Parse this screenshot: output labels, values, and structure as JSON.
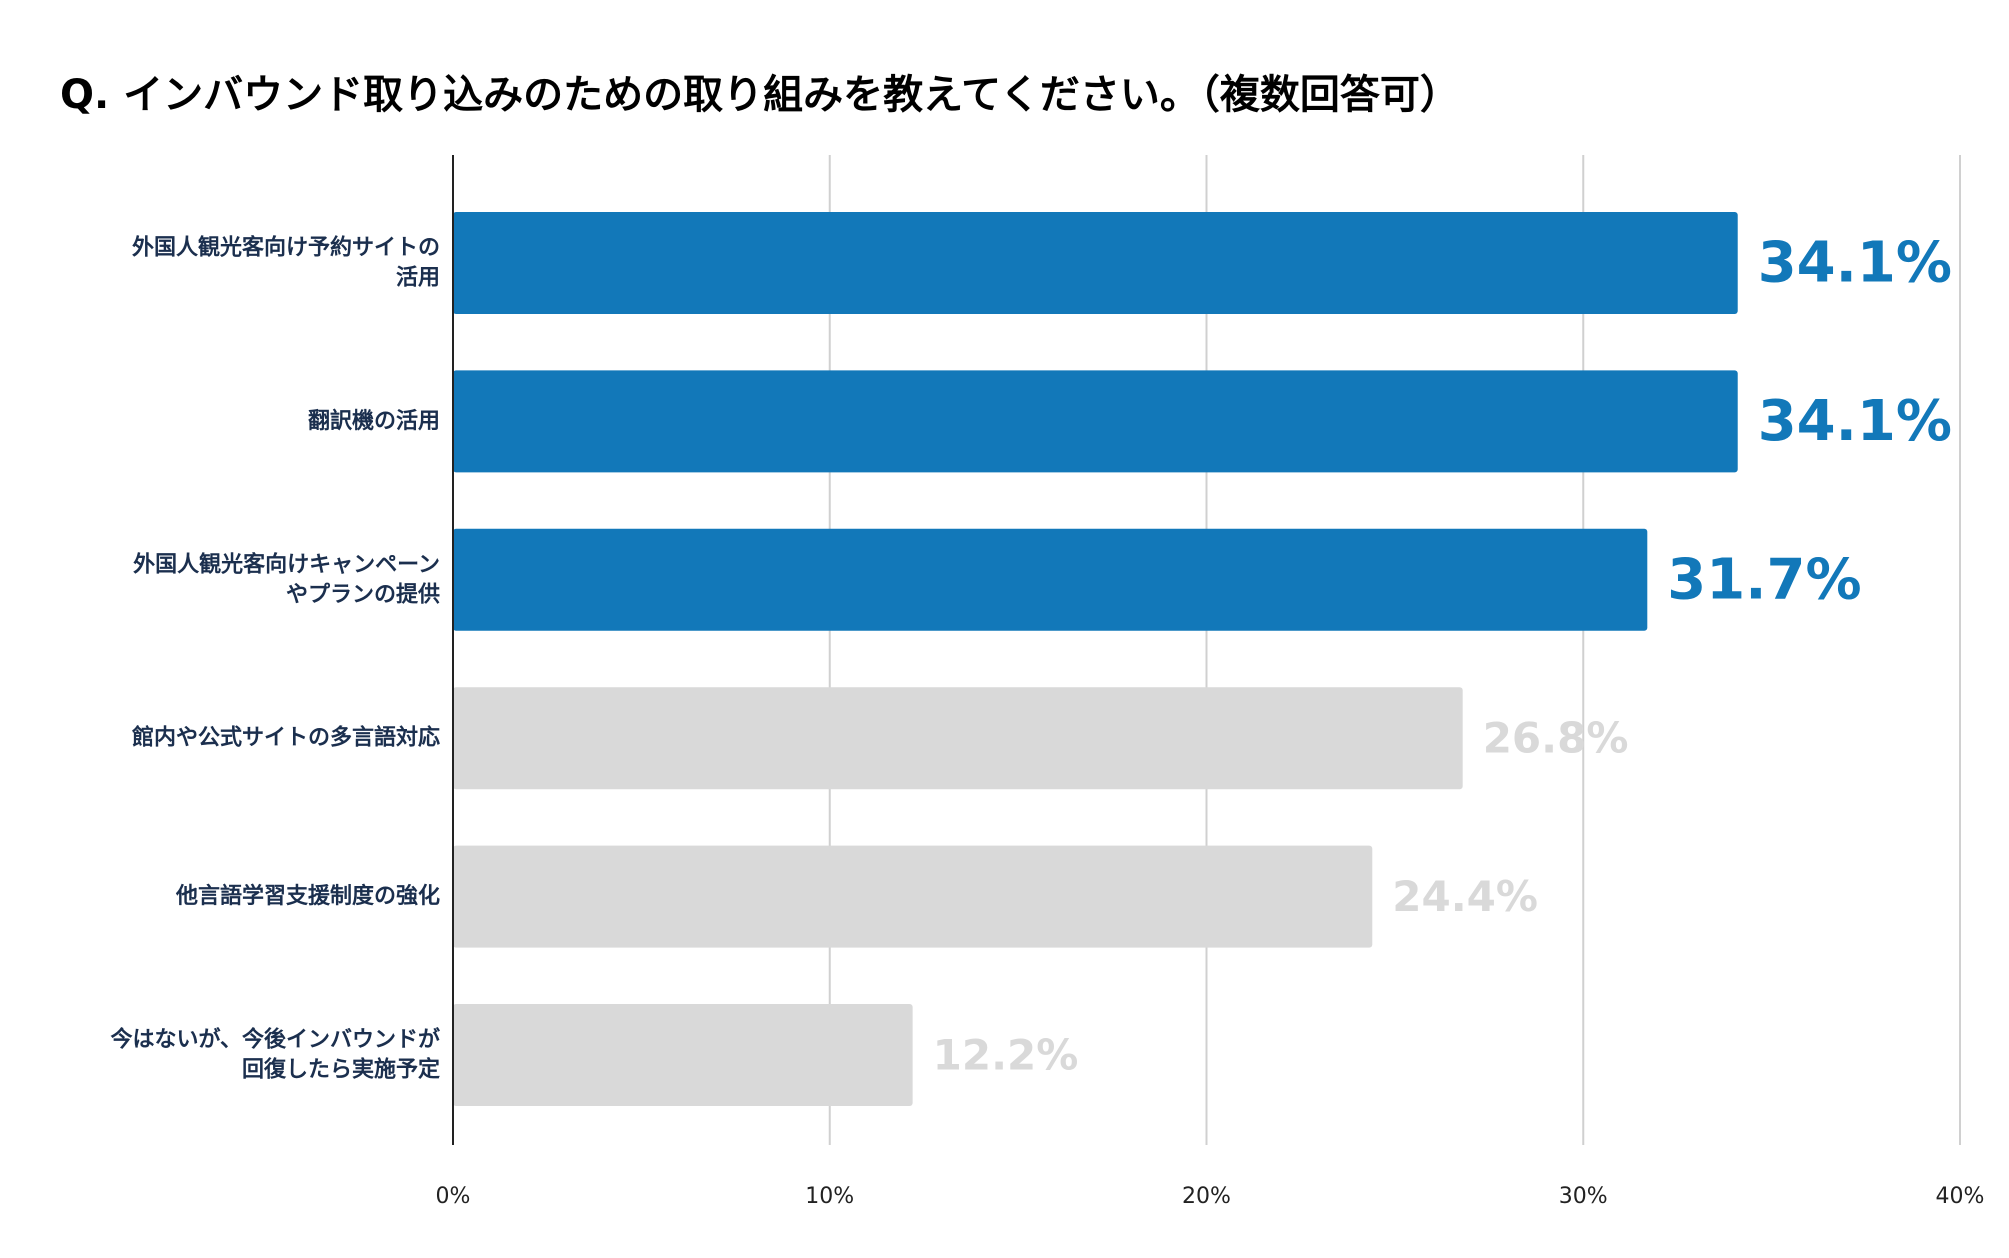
{
  "chart_data": {
    "type": "bar",
    "orientation": "horizontal",
    "title": "Q. インバウンド取り込みのための取り組みを教えてください。（複数回答可）",
    "categories": [
      [
        "外国人観光客向け予約サイトの",
        "活用"
      ],
      [
        "翻訳機の活用"
      ],
      [
        "外国人観光客向けキャンペーン",
        "やプランの提供"
      ],
      [
        "館内や公式サイトの多言語対応"
      ],
      [
        "他言語学習支援制度の強化"
      ],
      [
        "今はないが、今後インバウンドが",
        "回復したら実施予定"
      ]
    ],
    "values": [
      34.1,
      34.1,
      31.7,
      26.8,
      24.4,
      12.2
    ],
    "value_labels": [
      "34.1%",
      "34.1%",
      "31.7%",
      "26.8%",
      "24.4%",
      "12.2%"
    ],
    "highlighted": [
      true,
      true,
      true,
      false,
      false,
      false
    ],
    "xlim": [
      0,
      40
    ],
    "xticks": [
      0,
      10,
      20,
      30,
      40
    ],
    "xtick_labels": [
      "0%",
      "10%",
      "20%",
      "30%",
      "40%"
    ],
    "grid": true,
    "colors": {
      "highlight": "#1278b9",
      "muted": "#d9d9d9",
      "highlight_label": "#1278b9",
      "muted_label": "#d9d9d9",
      "category_label": "#1b2f4e",
      "grid": "#d0d0d0",
      "axis": "#222222"
    }
  }
}
